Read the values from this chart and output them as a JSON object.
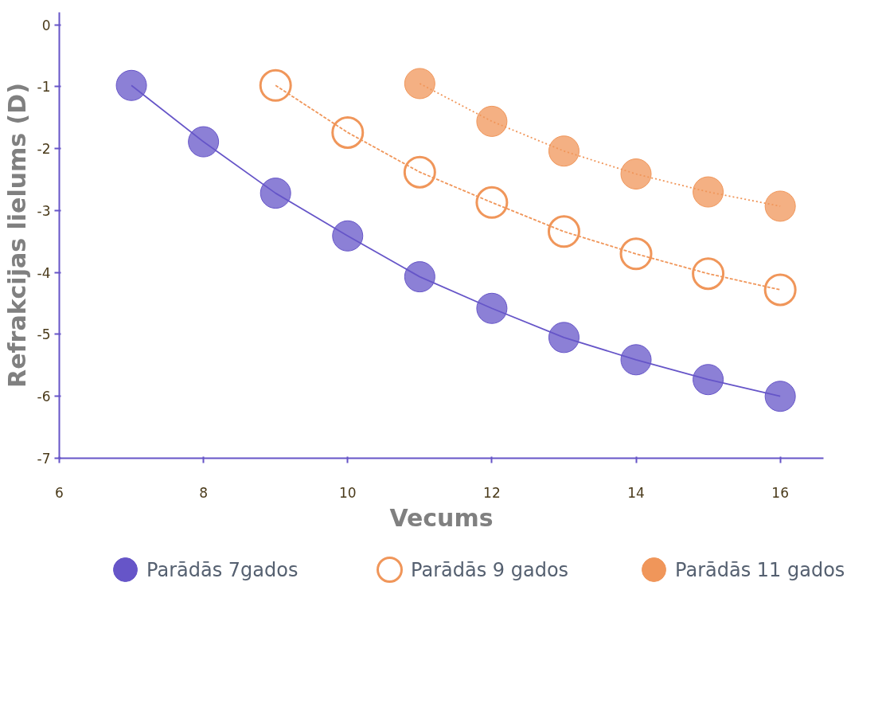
{
  "chart_data": {
    "type": "line",
    "xlabel": "Vecums",
    "ylabel": "Refrakcijas lielums (D)",
    "xlim": [
      6,
      16.6
    ],
    "xticks": [
      6,
      8,
      10,
      12,
      14,
      16
    ],
    "ylim": [
      -7,
      0.2
    ],
    "yticks": [
      0,
      -1,
      -2,
      -3,
      -4,
      -5,
      -6,
      -7
    ],
    "grid": false,
    "legend": "bottom",
    "marker": "circle",
    "series": [
      {
        "name": "Parādās 7gados",
        "color": "#6655c8",
        "line_style": "solid",
        "x": [
          7,
          8,
          9,
          10,
          11,
          12,
          13,
          14,
          15,
          16
        ],
        "values": [
          -0.98,
          -1.89,
          -2.72,
          -3.41,
          -4.07,
          -4.58,
          -5.05,
          -5.41,
          -5.73,
          -6.0
        ]
      },
      {
        "name": "Parādās 9 gados",
        "color": "#f0965a",
        "line_style": "dashed",
        "marker": "circle_open",
        "x": [
          9,
          10,
          11,
          12,
          13,
          14,
          15,
          16
        ],
        "values": [
          -0.98,
          -1.74,
          -2.38,
          -2.87,
          -3.34,
          -3.7,
          -4.02,
          -4.28
        ]
      },
      {
        "name": "Parādās 11 gados",
        "color": "#f0965a",
        "line_style": "dotted",
        "x": [
          11,
          12,
          13,
          14,
          15,
          16
        ],
        "values": [
          -0.95,
          -1.56,
          -2.04,
          -2.41,
          -2.7,
          -2.93
        ]
      }
    ]
  }
}
